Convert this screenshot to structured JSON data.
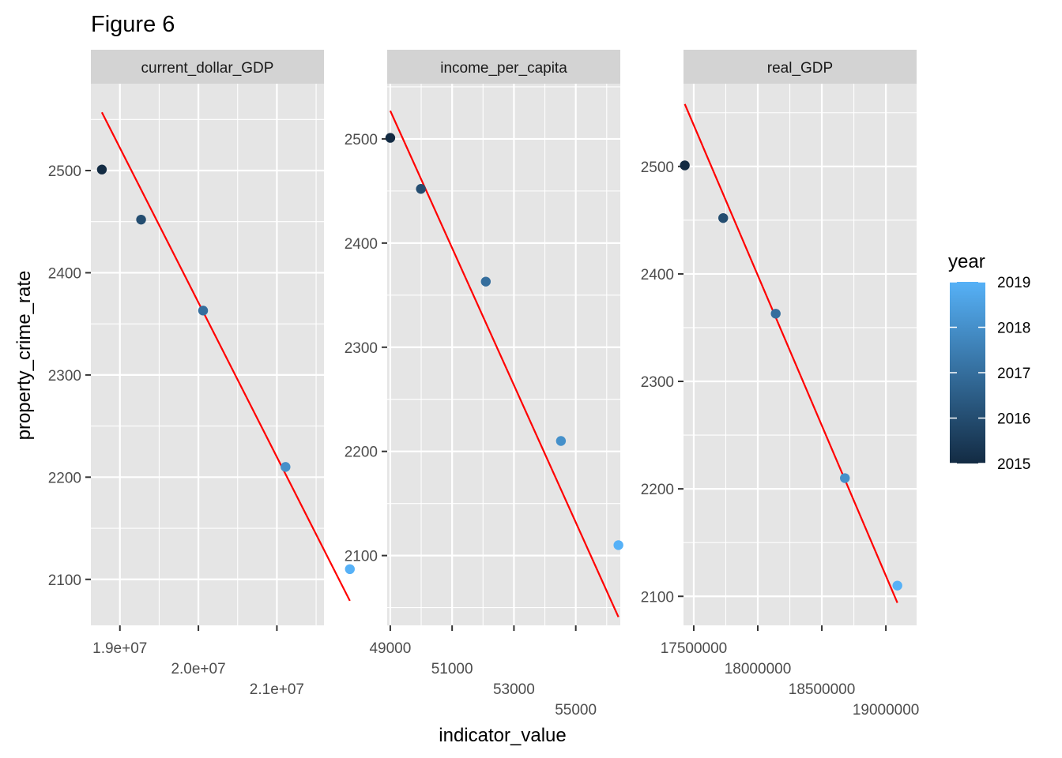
{
  "figure_title": "Figure 6",
  "chart_data": {
    "type": "scatter",
    "title": "Figure 6",
    "xlabel": "indicator_value",
    "ylabel": "property_crime_rate",
    "x_scales_free": true,
    "y_scales_free": true,
    "grid": true,
    "fit_line_color": "#ff0000",
    "legend": {
      "title": "year",
      "placement": "right",
      "type": "colorbar",
      "range": [
        2015,
        2019
      ],
      "breaks": [
        2015,
        2016,
        2017,
        2018,
        2019
      ],
      "break_labels": [
        "2015",
        "2016",
        "2017",
        "2018",
        "2019"
      ],
      "low_color": "#132b43",
      "high_color": "#56b1f7"
    },
    "facets": [
      {
        "name": "current_dollar_GDP",
        "xlim": [
          18630000,
          21600000
        ],
        "ylim": [
          2055,
          2585
        ],
        "x_ticks": [
          19000000,
          20000000,
          21000000
        ],
        "x_tick_labels": [
          "1.9e+07",
          "2.0e+07",
          "2.1e+07"
        ],
        "y_ticks": [
          2100,
          2200,
          2300,
          2400,
          2500
        ],
        "y_tick_labels": [
          "2100",
          "2200",
          "2300",
          "2400",
          "2500"
        ],
        "points": [
          {
            "x": 18770000,
            "y": 2501,
            "year": 2015
          },
          {
            "x": 19270000,
            "y": 2452,
            "year": 2016
          },
          {
            "x": 20060000,
            "y": 2363,
            "year": 2017
          },
          {
            "x": 21110000,
            "y": 2210,
            "year": 2018
          },
          {
            "x": 21930000,
            "y": 2110,
            "year": 2019
          }
        ],
        "fit": {
          "x": [
            18770000,
            21930000
          ],
          "y": [
            2557,
            2079
          ]
        }
      },
      {
        "name": "income_per_capita",
        "xlim": [
          48900,
          56440
        ],
        "ylim": [
          2033,
          2553
        ],
        "x_ticks": [
          49000,
          51000,
          53000,
          55000
        ],
        "x_tick_labels": [
          "49000",
          "51000",
          "53000",
          "55000"
        ],
        "y_ticks": [
          2100,
          2200,
          2300,
          2400,
          2500
        ],
        "y_tick_labels": [
          "2100",
          "2200",
          "2300",
          "2400",
          "2500"
        ],
        "points": [
          {
            "x": 49000,
            "y": 2501,
            "year": 2015
          },
          {
            "x": 49990,
            "y": 2452,
            "year": 2016
          },
          {
            "x": 52090,
            "y": 2363,
            "year": 2017
          },
          {
            "x": 54520,
            "y": 2210,
            "year": 2018
          },
          {
            "x": 56380,
            "y": 2110,
            "year": 2019
          }
        ],
        "fit": {
          "x": [
            49000,
            56380
          ],
          "y": [
            2527,
            2041
          ]
        }
      },
      {
        "name": "real_GDP",
        "xlim": [
          17420000,
          19240000
        ],
        "ylim": [
          2073,
          2577
        ],
        "x_ticks": [
          17500000,
          18000000,
          18500000,
          19000000
        ],
        "x_tick_labels": [
          "17500000",
          "18000000",
          "18500000",
          "19000000"
        ],
        "y_ticks": [
          2100,
          2200,
          2300,
          2400,
          2500
        ],
        "y_tick_labels": [
          "2100",
          "2200",
          "2300",
          "2400",
          "2500"
        ],
        "points": [
          {
            "x": 17430000,
            "y": 2501,
            "year": 2015
          },
          {
            "x": 17730000,
            "y": 2452,
            "year": 2016
          },
          {
            "x": 18140000,
            "y": 2363,
            "year": 2017
          },
          {
            "x": 18680000,
            "y": 2210,
            "year": 2018
          },
          {
            "x": 19090000,
            "y": 2110,
            "year": 2019
          }
        ],
        "fit": {
          "x": [
            17430000,
            19090000
          ],
          "y": [
            2558,
            2094
          ]
        }
      }
    ]
  }
}
